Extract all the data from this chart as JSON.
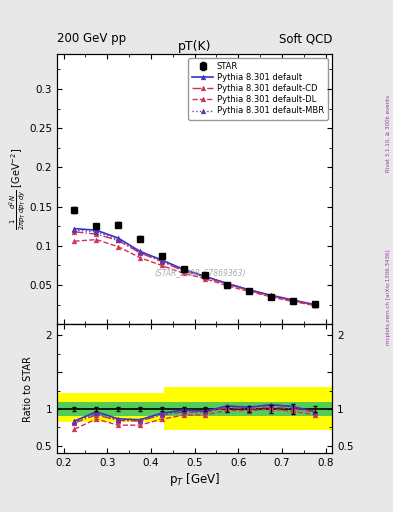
{
  "title": "pT(K)",
  "header_left": "200 GeV pp",
  "header_right": "Soft QCD",
  "ylabel_main": "$\\frac{1}{2\\pi p_T}\\frac{d^2N}{dp_T\\,dy}$ [GeV$^{-2}$]",
  "ylabel_ratio": "Ratio to STAR",
  "xlabel": "p$_T$ [GeV]",
  "watermark": "(STAR_2008_S7869363)",
  "right_label_top": "Rivet 3.1.10, ≥ 300k events",
  "right_label_bot": "mcplots.cern.ch [arXiv:1306.3436]",
  "star_pt": [
    0.225,
    0.275,
    0.325,
    0.375,
    0.425,
    0.475,
    0.525,
    0.575,
    0.625,
    0.675,
    0.725,
    0.775
  ],
  "star_y": [
    0.146,
    0.125,
    0.127,
    0.109,
    0.087,
    0.071,
    0.063,
    0.05,
    0.043,
    0.035,
    0.03,
    0.026
  ],
  "star_yerr": [
    0.004,
    0.003,
    0.003,
    0.003,
    0.002,
    0.002,
    0.002,
    0.002,
    0.002,
    0.002,
    0.002,
    0.001
  ],
  "def_pt": [
    0.225,
    0.275,
    0.325,
    0.375,
    0.425,
    0.475,
    0.525,
    0.575,
    0.625,
    0.675,
    0.725,
    0.775
  ],
  "def_y": [
    0.122,
    0.12,
    0.11,
    0.093,
    0.082,
    0.07,
    0.061,
    0.052,
    0.044,
    0.037,
    0.031,
    0.025
  ],
  "cd_pt": [
    0.225,
    0.275,
    0.325,
    0.375,
    0.425,
    0.475,
    0.525,
    0.575,
    0.625,
    0.675,
    0.725,
    0.775
  ],
  "cd_y": [
    0.118,
    0.115,
    0.107,
    0.091,
    0.08,
    0.068,
    0.06,
    0.051,
    0.043,
    0.036,
    0.03,
    0.025
  ],
  "dl_pt": [
    0.225,
    0.275,
    0.325,
    0.375,
    0.425,
    0.475,
    0.525,
    0.575,
    0.625,
    0.675,
    0.725,
    0.775
  ],
  "dl_y": [
    0.106,
    0.108,
    0.099,
    0.085,
    0.075,
    0.065,
    0.058,
    0.049,
    0.042,
    0.035,
    0.029,
    0.024
  ],
  "mbr_pt": [
    0.225,
    0.275,
    0.325,
    0.375,
    0.425,
    0.475,
    0.525,
    0.575,
    0.625,
    0.675,
    0.725,
    0.775
  ],
  "mbr_y": [
    0.12,
    0.118,
    0.108,
    0.092,
    0.081,
    0.069,
    0.061,
    0.052,
    0.044,
    0.037,
    0.031,
    0.025
  ],
  "color_def": "#3333cc",
  "color_cd": "#cc3355",
  "color_dl": "#cc3355",
  "color_mbr": "#6633aa",
  "ylim_main": [
    0.0,
    0.345
  ],
  "ylim_ratio": [
    0.4,
    2.15
  ],
  "xlim": [
    0.185,
    0.815
  ],
  "bg_color": "#e8e8e8",
  "plot_bg": "#ffffff"
}
